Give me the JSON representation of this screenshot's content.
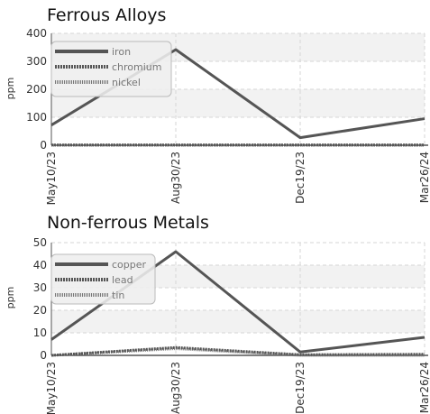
{
  "chart_data": [
    {
      "type": "line",
      "title": "Ferrous Alloys",
      "xlabel": "",
      "ylabel": "ppm",
      "categories": [
        "May10/23",
        "Aug30/23",
        "Dec19/23",
        "Mar26/24"
      ],
      "ylim": [
        0,
        400
      ],
      "yticks": [
        0,
        100,
        200,
        300,
        400
      ],
      "grid": true,
      "legend_position": "top-left",
      "series": [
        {
          "name": "iron",
          "values": [
            72,
            342,
            27,
            95
          ],
          "color": "#555555",
          "style": "solid"
        },
        {
          "name": "chromium",
          "values": [
            1,
            1,
            1,
            1
          ],
          "color": "#555555",
          "style": "dashed"
        },
        {
          "name": "nickel",
          "values": [
            0,
            0,
            0,
            0
          ],
          "color": "#777777",
          "style": "dotted"
        }
      ]
    },
    {
      "type": "line",
      "title": "Non-ferrous Metals",
      "xlabel": "",
      "ylabel": "ppm",
      "categories": [
        "May10/23",
        "Aug30/23",
        "Dec19/23",
        "Mar26/24"
      ],
      "ylim": [
        0,
        50
      ],
      "yticks": [
        0,
        10,
        20,
        30,
        40,
        50
      ],
      "grid": true,
      "legend_position": "top-left",
      "series": [
        {
          "name": "copper",
          "values": [
            7,
            46,
            1.5,
            8
          ],
          "color": "#555555",
          "style": "solid"
        },
        {
          "name": "lead",
          "values": [
            0,
            3.5,
            0.3,
            0.5
          ],
          "color": "#555555",
          "style": "dashed"
        },
        {
          "name": "tin",
          "values": [
            0,
            3,
            0,
            0
          ],
          "color": "#777777",
          "style": "dotted"
        }
      ]
    }
  ]
}
